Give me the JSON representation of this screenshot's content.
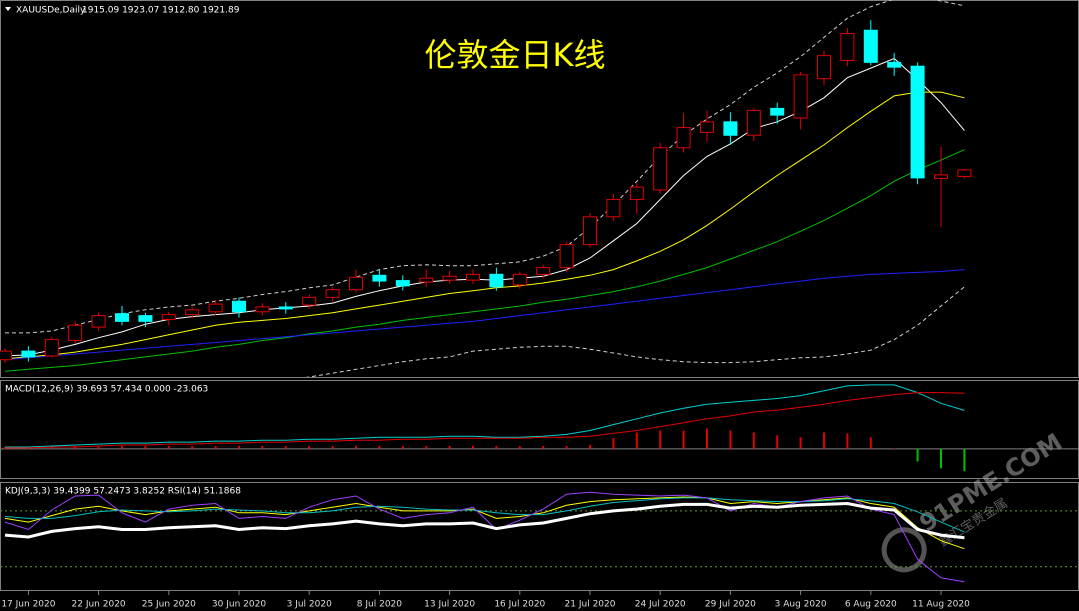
{
  "chart_data": {
    "type": "candlestick",
    "title": "伦敦金日K线",
    "symbol": "XAUUSDe,Daily",
    "ohlc_label": "1915.09 1923.07 1912.80 1921.89",
    "categories": [
      null,
      "17 Jun 2020",
      null,
      null,
      "22 Jun 2020",
      null,
      null,
      "25 Jun 2020",
      null,
      null,
      "30 Jun 2020",
      null,
      null,
      "3 Jul 2020",
      null,
      null,
      "8 Jul 2020",
      null,
      null,
      "13 Jul 2020",
      null,
      null,
      "16 Jul 2020",
      null,
      null,
      "21 Jul 2020",
      null,
      null,
      "24 Jul 2020",
      null,
      null,
      "29 Jul 2020",
      null,
      null,
      "3 Aug 2020",
      null,
      null,
      "6 Aug 2020",
      null,
      null,
      "11 Aug 2020",
      null
    ],
    "open": [
      1724,
      1733,
      1728,
      1744,
      1758,
      1772,
      1770,
      1766,
      1771,
      1774,
      1785,
      1774,
      1779,
      1781,
      1789,
      1797,
      1812,
      1806.5,
      1805,
      1807,
      1807,
      1813,
      1802,
      1813,
      1820,
      1844,
      1873,
      1891,
      1901,
      1945,
      1961,
      1972,
      1958,
      1986,
      1976,
      2017,
      2036,
      2067.5,
      2034,
      2030,
      1913,
      1915.09
    ],
    "high": [
      1736,
      1738,
      1748,
      1764,
      1773,
      1780,
      1773,
      1774,
      1779,
      1786,
      1789,
      1783,
      1784,
      1792,
      1800,
      1818,
      1818,
      1812,
      1818,
      1817,
      1818,
      1820,
      1816,
      1823,
      1847,
      1877,
      1897,
      1908,
      1950,
      1981,
      1984,
      1982,
      1986,
      1992,
      2024,
      2046,
      2070,
      2078,
      2044,
      2034,
      1946,
      1923.07
    ],
    "low": [
      1721,
      1722,
      1726,
      1741,
      1754,
      1760,
      1758,
      1760,
      1767,
      1770,
      1768,
      1770,
      1772,
      1777,
      1785,
      1794,
      1800,
      1796,
      1800,
      1803,
      1803,
      1796,
      1798,
      1809,
      1815,
      1841,
      1869,
      1876,
      1897,
      1940,
      1951,
      1948,
      1952,
      1970,
      1964,
      2010,
      2030,
      2031,
      2020,
      1907,
      1862,
      1912.8
    ],
    "close": [
      1733,
      1727,
      1745,
      1760,
      1770,
      1764,
      1764,
      1771,
      1776,
      1782,
      1774,
      1779,
      1777,
      1789,
      1797,
      1810,
      1806,
      1801,
      1809,
      1811,
      1813,
      1800,
      1813,
      1820,
      1844,
      1873,
      1891,
      1904,
      1945,
      1966,
      1972,
      1958,
      1984,
      1979,
      2021,
      2041,
      2064,
      2034,
      2029,
      1913.6,
      1916.7,
      1921.89
    ],
    "ylim": [
      1706,
      2099
    ],
    "up_color": "#e00000",
    "down_color": "#00ffff",
    "series": [
      {
        "color": "#ffffff",
        "dash": false,
        "values": [
          1728,
          1729,
          1734,
          1740,
          1747,
          1753,
          1761,
          1766,
          1769,
          1771,
          1773,
          1776,
          1778,
          1780,
          1783,
          1790,
          1796,
          1801,
          1805,
          1807,
          1808,
          1807,
          1809,
          1811,
          1818,
          1830,
          1848,
          1866,
          1891,
          1916,
          1936,
          1949,
          1965,
          1972,
          1983,
          1997,
          2018,
          2028,
          2038,
          2016,
          1992,
          1963
        ]
      },
      {
        "color": "#ffff00",
        "dash": false,
        "values": [
          1725,
          1727,
          1729,
          1732,
          1736,
          1740,
          1745,
          1750,
          1755,
          1760,
          1763,
          1765,
          1767,
          1770,
          1773,
          1777,
          1781,
          1785,
          1789,
          1793,
          1796,
          1799,
          1801,
          1804,
          1808,
          1812,
          1818,
          1827,
          1837,
          1849,
          1864,
          1881,
          1899,
          1916,
          1932,
          1948,
          1966,
          1983,
          1999,
          2003,
          2003,
          1997
        ]
      },
      {
        "color": "#00c000",
        "dash": false,
        "values": [
          1712,
          1714,
          1716,
          1718,
          1721,
          1724,
          1727,
          1730,
          1733,
          1737,
          1740,
          1744,
          1747,
          1751,
          1754,
          1758,
          1761,
          1765,
          1768,
          1771,
          1774,
          1777,
          1780,
          1784,
          1787,
          1791,
          1795,
          1800,
          1806,
          1813,
          1820,
          1829,
          1838,
          1847,
          1858,
          1869,
          1882,
          1895,
          1910,
          1922,
          1932,
          1943
        ]
      },
      {
        "color": "#2020ff",
        "dash": false,
        "values": [
          1724,
          1726,
          1728,
          1730,
          1732,
          1734,
          1736,
          1738,
          1740,
          1742,
          1744,
          1746,
          1748,
          1750,
          1752,
          1754,
          1756,
          1758,
          1760,
          1762,
          1764,
          1767,
          1770,
          1773,
          1776,
          1779,
          1782,
          1785,
          1788,
          1791,
          1794,
          1797,
          1800,
          1803,
          1806,
          1809,
          1811,
          1813,
          1814,
          1815,
          1816,
          1818
        ]
      },
      {
        "color": "#d0d0d0",
        "dash": true,
        "values": [
          1752,
          1752,
          1754,
          1760,
          1766,
          1772,
          1776,
          1779,
          1781,
          1785,
          1788,
          1792,
          1795,
          1799,
          1802,
          1810,
          1818,
          1822,
          1823,
          1822,
          1822,
          1824,
          1826,
          1832,
          1842,
          1862,
          1885,
          1910,
          1936,
          1958,
          1975,
          1990,
          2008,
          2023,
          2040,
          2060,
          2080,
          2092,
          2100,
          2102,
          2098,
          2093
        ]
      },
      {
        "color": "#d0d0d0",
        "dash": true,
        "values": [
          1700,
          1700,
          1698,
          1695,
          1693,
          1693,
          1695,
          1697,
          1699,
          1700,
          1700,
          1701,
          1703,
          1706,
          1710,
          1714,
          1718,
          1722,
          1725,
          1727,
          1733,
          1735,
          1737,
          1738,
          1738,
          1735,
          1731,
          1727,
          1724,
          1722,
          1721,
          1721,
          1722,
          1724,
          1726,
          1727,
          1730,
          1734,
          1745,
          1760,
          1780,
          1800
        ]
      }
    ],
    "panels": [
      {
        "type": "macd",
        "label": "MACD(12,26,9) 39.693 57.434 0.000 -23.063",
        "ylim": [
          -30,
          70
        ],
        "up_color": "#e00000",
        "down_color": "#00c000",
        "histogram": [
          2,
          2,
          2,
          3,
          3,
          3,
          3,
          3,
          3,
          3,
          3,
          3,
          3,
          3,
          3,
          3,
          3,
          3,
          3,
          3,
          3,
          3,
          3,
          3,
          3,
          4,
          11,
          17,
          19,
          19,
          21,
          19,
          17,
          14,
          12,
          17,
          16,
          12,
          0.5,
          -13,
          -20,
          -23.063
        ],
        "series": [
          {
            "color": "#00d0d0",
            "dash": false,
            "values": [
              2,
              2,
              3,
              4,
              5,
              6,
              6,
              7,
              7,
              8,
              8,
              9,
              9,
              10,
              10,
              11,
              12,
              12,
              12,
              13,
              13,
              12,
              12,
              13,
              15,
              19,
              25,
              31,
              37,
              42,
              46,
              48,
              50,
              52,
              55,
              60,
              65,
              66,
              66,
              58,
              47,
              39.693
            ]
          },
          {
            "color": "#e00000",
            "dash": false,
            "values": [
              1,
              1,
              2,
              2,
              3,
              4,
              4,
              5,
              5,
              6,
              6,
              7,
              7,
              8,
              8,
              9,
              9,
              10,
              10,
              11,
              11,
              11,
              11,
              12,
              12,
              13,
              16,
              19,
              23,
              27,
              31,
              34,
              38,
              40,
              43,
              46,
              50,
              53,
              56,
              58,
              58,
              57.434
            ]
          }
        ]
      },
      {
        "type": "kdj",
        "label": "KDJ(9,3,3) 39.4399 57.2473 3.8252 RSI(14) 51.1868",
        "ylim": [
          -5,
          110
        ],
        "levels": [
          80,
          20
        ],
        "series": [
          {
            "color": "#ffff00",
            "dash": false,
            "values": [
              72,
              68,
              75,
              82,
              85,
              80,
              76,
              80,
              82,
              84,
              78,
              78,
              76,
              80,
              84,
              88,
              84,
              80,
              80,
              80,
              82,
              72,
              74,
              78,
              86,
              90,
              92,
              93,
              94,
              95,
              94,
              88,
              90,
              88,
              90,
              92,
              94,
              88,
              84,
              62,
              48,
              39.4399
            ]
          },
          {
            "color": "#00c0c0",
            "dash": false,
            "values": [
              74,
              72,
              72,
              75,
              79,
              81,
              80,
              79,
              80,
              82,
              81,
              80,
              78,
              78,
              80,
              84,
              85,
              84,
              82,
              81,
              81,
              78,
              76,
              76,
              80,
              85,
              89,
              91,
              93,
              94,
              94,
              92,
              91,
              90,
              90,
              91,
              93,
              91,
              88,
              79,
              68,
              57.2473
            ]
          },
          {
            "color": "#a040ff",
            "dash": false,
            "values": [
              68,
              60,
              81,
              96,
              97,
              78,
              68,
              82,
              86,
              88,
              72,
              74,
              72,
              84,
              92,
              96,
              82,
              72,
              76,
              78,
              84,
              60,
              70,
              82,
              98,
              100,
              98,
              97,
              96,
              97,
              94,
              80,
              88,
              84,
              90,
              94,
              96,
              82,
              76,
              28,
              8,
              3.8252
            ]
          },
          {
            "color": "#ffffff",
            "dash": false,
            "width": 3,
            "values": [
              54,
              52,
              58,
              61,
              63,
              60,
              60,
              62,
              63,
              64,
              60,
              62,
              61,
              64,
              66,
              69,
              66,
              64,
              66,
              66,
              67,
              61,
              65,
              67,
              72,
              77,
              80,
              82,
              85,
              87,
              87,
              83,
              85,
              84,
              86,
              87,
              88,
              83,
              81,
              60,
              54,
              51.1868
            ]
          }
        ]
      }
    ]
  },
  "watermark": {
    "text": "91PME.COM",
    "subtext": "鑫汇宝贵金属"
  }
}
